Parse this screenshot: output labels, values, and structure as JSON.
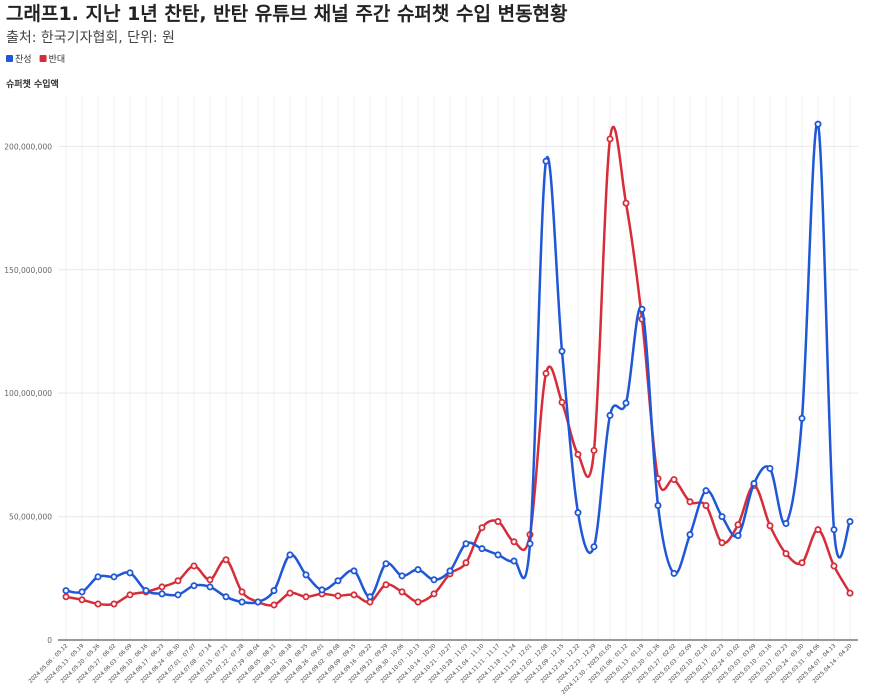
{
  "chart_data": {
    "type": "line",
    "title": "그래프1. 지난 1년 찬탄, 반탄 유튜브 채널 주간 슈퍼챗 수입 변동현황",
    "subtitle": "출처: 한국기자협회, 단위: 원",
    "y_label": "슈퍼챗 수입액",
    "categories": [
      "2024.05.06 - 05.12",
      "2024.05.13 - 05.19",
      "2024.05.20 - 05.26",
      "2024.05.27 - 06.02",
      "2024.06.03 - 06.09",
      "2024.06.10 - 06.16",
      "2024.06.17 - 06.23",
      "2024.06.24 - 06.30",
      "2024.07.01 - 07.07",
      "2024.07.08 - 07.14",
      "2024.07.15 - 07.21",
      "2024.07.22 - 07.28",
      "2024.07.29 - 08.04",
      "2024.08.05 - 08.11",
      "2024.08.12 - 08.18",
      "2024.08.19 - 08.25",
      "2024.08.26 - 09.01",
      "2024.09.02 - 09.08",
      "2024.09.09 - 09.15",
      "2024.09.16 - 09.22",
      "2024.09.23 - 09.29",
      "2024.09.30 - 10.06",
      "2024.10.07 - 10.13",
      "2024.10.14 - 10.20",
      "2024.10.21 - 10.27",
      "2024.10.28 - 11.03",
      "2024.11.04 - 11.10",
      "2024.11.11 - 11.17",
      "2024.11.18 - 11.24",
      "2024.11.25 - 12.01",
      "2024.12.02 - 12.08",
      "2024.12.09 - 12.15",
      "2024.12.16 - 12.22",
      "2024.12.23 - 12.29",
      "2024.12.30 - 2025.01.05",
      "2025.01.06 - 01.12",
      "2025.01.13 - 01.19",
      "2025.01.20 - 01.26",
      "2025.01.27 - 02.02",
      "2025.02.03 - 02.09",
      "2025.02.10 - 02.16",
      "2025.02.17 - 02.23",
      "2025.02.24 - 03.02",
      "2025.03.03 - 03.09",
      "2025.03.10 - 03.16",
      "2025.03.17 - 03.23",
      "2025.03.24 - 03.30",
      "2025.03.31 - 04.06",
      "2025.04.07 - 04.13",
      "2025.04.14 - 04.20"
    ],
    "series": [
      {
        "name": "찬성",
        "color": "#1f57d6",
        "values": [
          20000000,
          19500000,
          25600000,
          25600000,
          27200000,
          20000000,
          18700000,
          18300000,
          22000000,
          21500000,
          17500000,
          15400000,
          15400000,
          20000000,
          34500000,
          26400000,
          20300000,
          24000000,
          28000000,
          17500000,
          30900000,
          26000000,
          28500000,
          24400000,
          28000000,
          39000000,
          37000000,
          34500000,
          32000000,
          39000000,
          194000000,
          117000000,
          51600000,
          37800000,
          91000000,
          96000000,
          134000000,
          54500000,
          27000000,
          42700000,
          60500000,
          50000000,
          42300000,
          63400000,
          69500000,
          47200000,
          89800000,
          209000000,
          44700000,
          48000000
        ]
      },
      {
        "name": "반대",
        "color": "#d62d3a",
        "values": [
          17500000,
          16300000,
          14600000,
          14600000,
          18300000,
          19500000,
          21500000,
          24000000,
          30000000,
          24400000,
          32500000,
          19500000,
          15400000,
          14200000,
          19000000,
          17500000,
          18700000,
          17900000,
          18300000,
          15400000,
          22400000,
          19500000,
          15400000,
          18700000,
          26800000,
          31300000,
          45500000,
          48000000,
          39800000,
          42700000,
          108000000,
          96300000,
          75200000,
          76800000,
          203000000,
          177000000,
          130000000,
          65400000,
          65000000,
          56000000,
          54500000,
          39400000,
          46700000,
          62600000,
          46300000,
          35000000,
          31300000,
          44700000,
          30000000,
          19000000
        ]
      }
    ],
    "ylim": [
      0,
      220000000
    ],
    "yticks": [
      0,
      {
        "value": 50000000,
        "label": "50,000,000"
      },
      {
        "value": 100000000,
        "label": "100,000,000"
      },
      {
        "value": 150000000,
        "label": "150,000,000"
      },
      {
        "value": 200000000,
        "label": "200,000,000"
      }
    ],
    "grid": true,
    "legend": "top-left"
  }
}
